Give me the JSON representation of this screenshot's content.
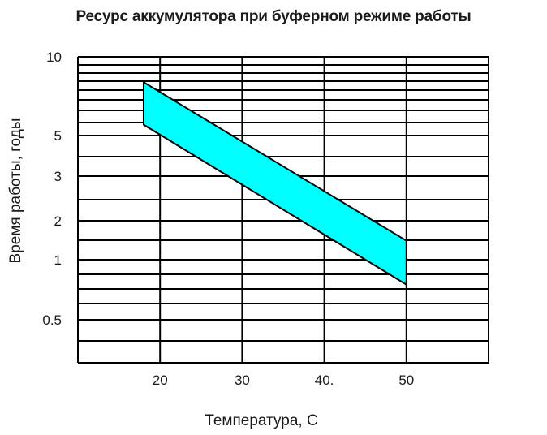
{
  "chart_data": {
    "type": "area",
    "title": "Ресурс аккумулятора при буферном режиме работы",
    "xlabel": "Температура,  С",
    "ylabel": "Время работы, годы",
    "x_ticks": [
      "20",
      "30",
      "40.",
      "50"
    ],
    "y_ticks": [
      "10",
      "5",
      "3",
      "2",
      "1",
      "0.5"
    ],
    "xlim": [
      10,
      60
    ],
    "grid": true,
    "legend": "none",
    "series": [
      {
        "x": [
          18,
          50
        ],
        "y_upper": [
          8,
          1.4
        ],
        "y_lower": [
          5.5,
          0.75
        ],
        "fill_color": "#00ffff",
        "edge_color": "#000000"
      }
    ]
  }
}
